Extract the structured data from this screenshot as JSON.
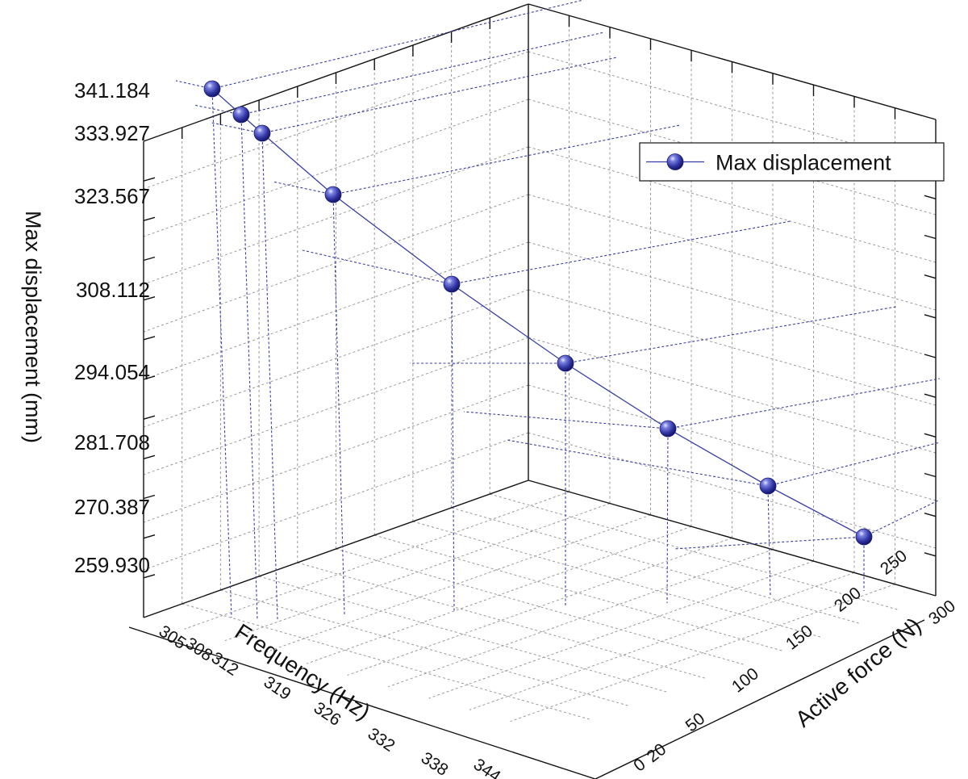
{
  "chart_data": {
    "type": "scatter",
    "subtype": "3d-scatter-with-line",
    "title": "",
    "xlabel": "Frequency (Hz)",
    "ylabel": "Active force (N)",
    "zlabel": "Max displacement (mm)",
    "x_ticks": [
      "305",
      "308",
      "312",
      "319",
      "326",
      "332",
      "338",
      "344"
    ],
    "y_ticks": [
      "0",
      "20",
      "50",
      "100",
      "150",
      "200",
      "250",
      "300"
    ],
    "z_ticks": [
      "259.930",
      "270.387",
      "281.708",
      "294.054",
      "308.112",
      "323.567",
      "333.927",
      "341.184"
    ],
    "legend": {
      "position": "top-right",
      "entries": [
        "Max displacement"
      ]
    },
    "grid": true,
    "series": [
      {
        "name": "Max displacement",
        "color": "#3a3fa8",
        "points": [
          {
            "frequency": 305,
            "force": 20,
            "displacement": 341.184
          },
          {
            "frequency": 308,
            "force": 50,
            "displacement": 333.927
          },
          {
            "frequency": 312,
            "force": 100,
            "displacement": 333.927
          },
          {
            "frequency": 319,
            "force": 150,
            "displacement": 323.567
          },
          {
            "frequency": 326,
            "force": 200,
            "displacement": 308.112
          },
          {
            "frequency": 332,
            "force": 250,
            "displacement": 294.054
          },
          {
            "frequency": 338,
            "force": 250,
            "displacement": 281.708
          },
          {
            "frequency": 344,
            "force": 300,
            "displacement": 270.387
          },
          {
            "frequency": 344,
            "force": 300,
            "displacement": 259.93
          }
        ]
      }
    ]
  }
}
